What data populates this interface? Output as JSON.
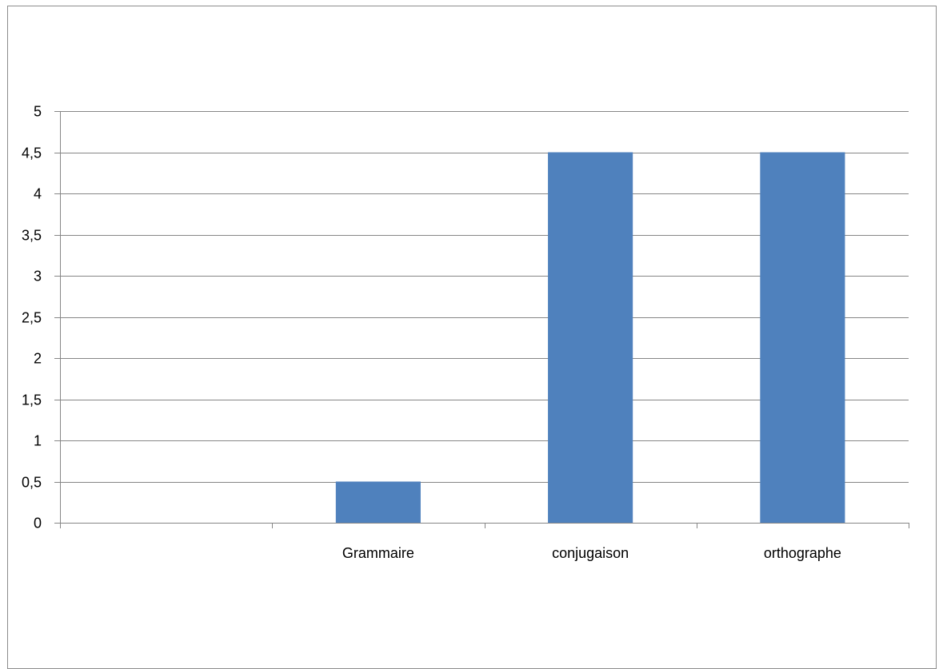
{
  "chart_data": {
    "type": "bar",
    "title": "",
    "xlabel": "",
    "ylabel": "",
    "categories": [
      "",
      "Grammaire",
      "conjugaison",
      "orthographe"
    ],
    "values": [
      null,
      0.5,
      4.5,
      4.5
    ],
    "ylim": [
      0,
      5
    ],
    "yticks": [
      "0",
      "0,5",
      "1",
      "1,5",
      "2",
      "2,5",
      "3",
      "3,5",
      "4",
      "4,5",
      "5"
    ],
    "grid": true,
    "legend": false,
    "colors": {
      "bar": "#4f81bd",
      "grid": "#868686",
      "axis": "#868686",
      "frame": "#8c8c8c"
    }
  }
}
